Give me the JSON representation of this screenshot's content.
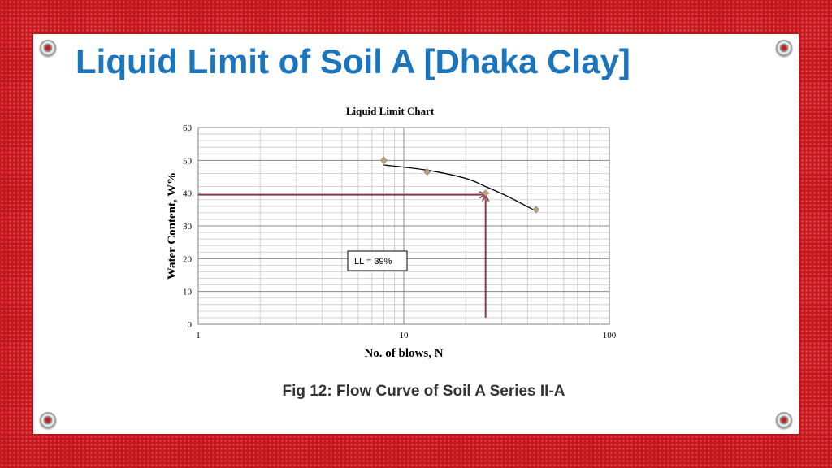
{
  "slide": {
    "title": "Liquid Limit of Soil A [Dhaka Clay]",
    "caption": "Fig 12: Flow Curve of Soil A Series II-A",
    "colors": {
      "background": "#c8161d",
      "title": "#1a75bc",
      "marker": "#b5a47e",
      "arrow": "#8b3a4a",
      "curve": "#000000"
    }
  },
  "chart_data": {
    "type": "scatter",
    "title": "Liquid Limit Chart",
    "xlabel": "No. of blows, N",
    "ylabel": "Water Content, W%",
    "x_scale": "log",
    "xlim": [
      1,
      100
    ],
    "ylim": [
      0,
      60
    ],
    "x_ticks": [
      "1",
      "10",
      "100"
    ],
    "y_ticks": [
      "0",
      "10",
      "20",
      "30",
      "40",
      "50",
      "60"
    ],
    "grid": true,
    "legend": "none",
    "points": [
      {
        "x": 8,
        "y": 50
      },
      {
        "x": 13,
        "y": 46.5
      },
      {
        "x": 25,
        "y": 40
      },
      {
        "x": 44,
        "y": 35
      }
    ],
    "trendline": [
      {
        "x": 8,
        "y": 48.6
      },
      {
        "x": 13,
        "y": 47
      },
      {
        "x": 20,
        "y": 44.5
      },
      {
        "x": 25,
        "y": 42
      },
      {
        "x": 32,
        "y": 39
      },
      {
        "x": 44,
        "y": 34.5
      }
    ],
    "annotation": {
      "text": "LL = 39%",
      "x": 25,
      "y": 39
    },
    "arrows": [
      {
        "from": {
          "x": 1,
          "y": 39.5
        },
        "to": {
          "x": 25,
          "y": 39.5
        }
      },
      {
        "from": {
          "x": 25,
          "y": 2
        },
        "to": {
          "x": 25,
          "y": 39.5
        }
      }
    ]
  }
}
